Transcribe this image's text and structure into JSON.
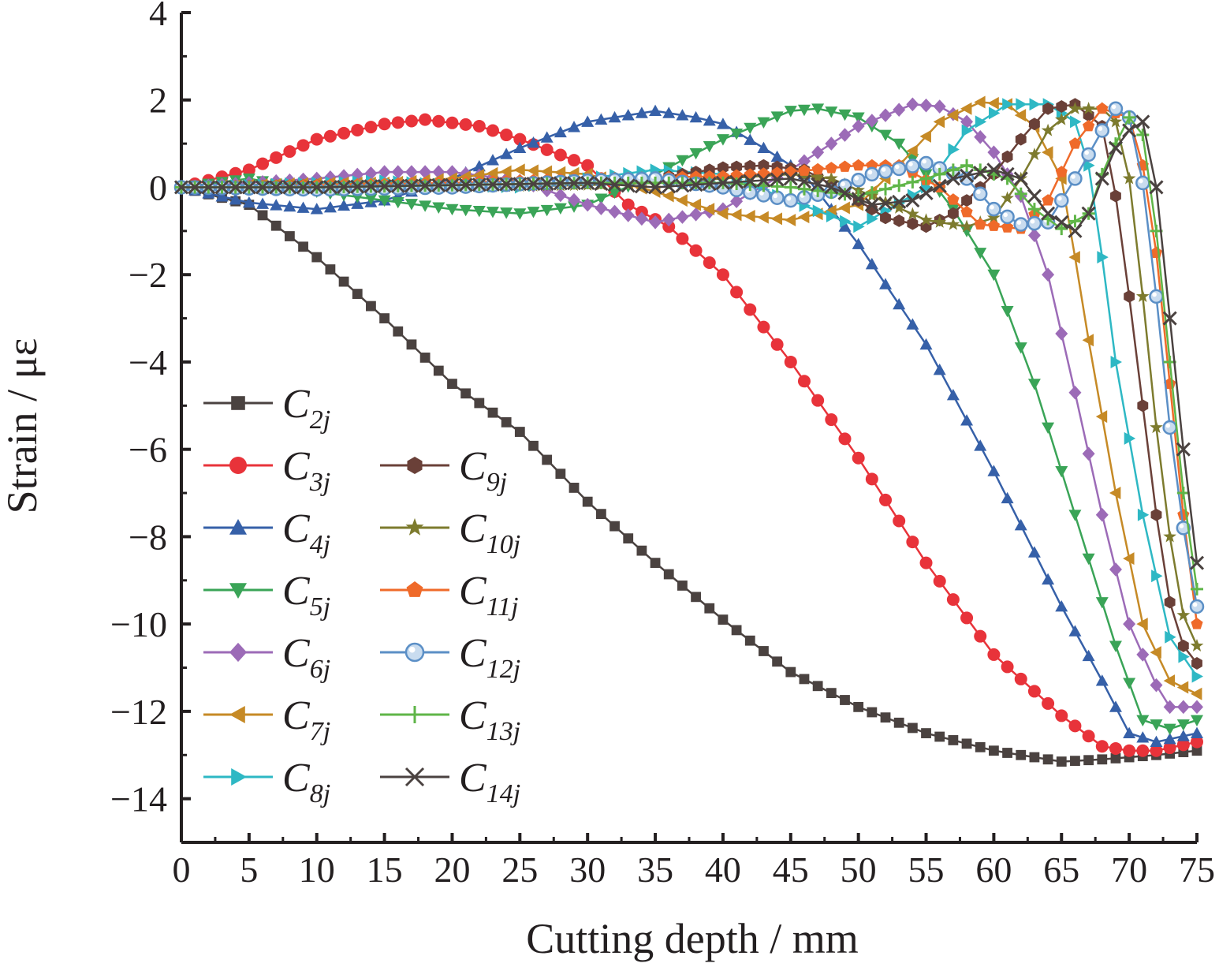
{
  "chart_data": {
    "type": "line",
    "xlabel": "Cutting depth / mm",
    "ylabel": "Strain / με",
    "xlim": [
      0,
      75
    ],
    "ylim": [
      -15,
      4
    ],
    "xticks": [
      "0",
      "5",
      "10",
      "15",
      "20",
      "25",
      "30",
      "35",
      "40",
      "45",
      "50",
      "55",
      "60",
      "65",
      "70",
      "75"
    ],
    "yticks": [
      "4",
      "2",
      "0",
      "−2",
      "−4",
      "−6",
      "−8",
      "−10",
      "−12",
      "−14"
    ],
    "grid": false,
    "legend_position": "bottom-left, two columns",
    "series": [
      {
        "name": "C2j",
        "letter": "C",
        "sub": "2j",
        "color": "#4a4240",
        "marker": "square",
        "points": [
          [
            0,
            0
          ],
          [
            5,
            -0.4
          ],
          [
            10,
            -1.6
          ],
          [
            15,
            -3.0
          ],
          [
            20,
            -4.5
          ],
          [
            25,
            -5.6
          ],
          [
            30,
            -7.2
          ],
          [
            35,
            -8.6
          ],
          [
            40,
            -9.9
          ],
          [
            45,
            -11.1
          ],
          [
            50,
            -11.9
          ],
          [
            55,
            -12.5
          ],
          [
            60,
            -12.9
          ],
          [
            65,
            -13.15
          ],
          [
            68,
            -13.1
          ],
          [
            72,
            -13.0
          ],
          [
            75,
            -12.9
          ]
        ]
      },
      {
        "name": "C3j",
        "letter": "C",
        "sub": "3j",
        "color": "#e8333a",
        "marker": "circle",
        "points": [
          [
            0,
            0
          ],
          [
            5,
            0.4
          ],
          [
            10,
            1.1
          ],
          [
            15,
            1.45
          ],
          [
            18,
            1.55
          ],
          [
            22,
            1.4
          ],
          [
            25,
            1.1
          ],
          [
            30,
            0.5
          ],
          [
            33,
            -0.4
          ],
          [
            36,
            -0.9
          ],
          [
            40,
            -2.0
          ],
          [
            45,
            -4.0
          ],
          [
            50,
            -6.2
          ],
          [
            55,
            -8.6
          ],
          [
            60,
            -10.7
          ],
          [
            65,
            -12.1
          ],
          [
            68,
            -12.8
          ],
          [
            70,
            -12.9
          ],
          [
            72,
            -12.9
          ],
          [
            75,
            -12.7
          ]
        ]
      },
      {
        "name": "C4j",
        "letter": "C",
        "sub": "4j",
        "color": "#3660a8",
        "marker": "triangle-up",
        "points": [
          [
            0,
            0
          ],
          [
            5,
            -0.35
          ],
          [
            10,
            -0.5
          ],
          [
            15,
            -0.3
          ],
          [
            20,
            0.2
          ],
          [
            25,
            0.9
          ],
          [
            30,
            1.5
          ],
          [
            35,
            1.75
          ],
          [
            38,
            1.6
          ],
          [
            40,
            1.45
          ],
          [
            43,
            0.9
          ],
          [
            46,
            0.3
          ],
          [
            50,
            -1.3
          ],
          [
            55,
            -3.6
          ],
          [
            60,
            -6.5
          ],
          [
            65,
            -9.6
          ],
          [
            68,
            -11.3
          ],
          [
            70,
            -12.5
          ],
          [
            72,
            -12.7
          ],
          [
            75,
            -12.5
          ]
        ]
      },
      {
        "name": "C5j",
        "letter": "C",
        "sub": "5j",
        "color": "#3aa457",
        "marker": "triangle-down",
        "points": [
          [
            0,
            0
          ],
          [
            5,
            0.2
          ],
          [
            10,
            -0.1
          ],
          [
            15,
            -0.3
          ],
          [
            20,
            -0.5
          ],
          [
            25,
            -0.6
          ],
          [
            30,
            -0.4
          ],
          [
            35,
            0.3
          ],
          [
            40,
            1.1
          ],
          [
            45,
            1.75
          ],
          [
            47,
            1.8
          ],
          [
            50,
            1.6
          ],
          [
            53,
            1.0
          ],
          [
            55,
            0.3
          ],
          [
            57,
            -0.5
          ],
          [
            60,
            -2.0
          ],
          [
            63,
            -4.5
          ],
          [
            66,
            -7.5
          ],
          [
            69,
            -10.5
          ],
          [
            71,
            -12.2
          ],
          [
            73,
            -12.4
          ],
          [
            75,
            -12.2
          ]
        ]
      },
      {
        "name": "C6j",
        "letter": "C",
        "sub": "6j",
        "color": "#9c6bb7",
        "marker": "diamond",
        "points": [
          [
            0,
            0
          ],
          [
            5,
            0.1
          ],
          [
            10,
            0.2
          ],
          [
            15,
            0.35
          ],
          [
            20,
            0.35
          ],
          [
            25,
            0.15
          ],
          [
            30,
            -0.4
          ],
          [
            35,
            -0.8
          ],
          [
            40,
            -0.5
          ],
          [
            45,
            0.4
          ],
          [
            50,
            1.4
          ],
          [
            54,
            1.9
          ],
          [
            56,
            1.85
          ],
          [
            58,
            1.5
          ],
          [
            60,
            0.8
          ],
          [
            62,
            -0.2
          ],
          [
            64,
            -2.0
          ],
          [
            66,
            -4.7
          ],
          [
            68,
            -7.5
          ],
          [
            70,
            -10.0
          ],
          [
            72,
            -11.4
          ],
          [
            73,
            -11.9
          ],
          [
            75,
            -11.9
          ]
        ]
      },
      {
        "name": "C7j",
        "letter": "C",
        "sub": "7j",
        "color": "#c68a26",
        "marker": "triangle-left",
        "points": [
          [
            0,
            0
          ],
          [
            5,
            0.05
          ],
          [
            10,
            0.1
          ],
          [
            15,
            0.1
          ],
          [
            20,
            0.2
          ],
          [
            25,
            0.4
          ],
          [
            30,
            0.3
          ],
          [
            35,
            -0.1
          ],
          [
            40,
            -0.6
          ],
          [
            45,
            -0.75
          ],
          [
            50,
            -0.4
          ],
          [
            53,
            0.5
          ],
          [
            56,
            1.5
          ],
          [
            59,
            1.95
          ],
          [
            61,
            1.9
          ],
          [
            63,
            1.4
          ],
          [
            65,
            0.2
          ],
          [
            66,
            -1.6
          ],
          [
            67,
            -3.5
          ],
          [
            69,
            -7.0
          ],
          [
            71,
            -10.0
          ],
          [
            73,
            -11.3
          ],
          [
            75,
            -11.6
          ]
        ]
      },
      {
        "name": "C8j",
        "letter": "C",
        "sub": "8j",
        "color": "#2eb8c4",
        "marker": "triangle-right",
        "points": [
          [
            0,
            0
          ],
          [
            5,
            0.05
          ],
          [
            10,
            0.1
          ],
          [
            15,
            0.15
          ],
          [
            20,
            0.05
          ],
          [
            25,
            0.0
          ],
          [
            30,
            0.2
          ],
          [
            35,
            0.4
          ],
          [
            40,
            0.3
          ],
          [
            45,
            -0.3
          ],
          [
            50,
            -0.9
          ],
          [
            55,
            0.0
          ],
          [
            58,
            1.3
          ],
          [
            61,
            1.9
          ],
          [
            64,
            1.9
          ],
          [
            66,
            1.5
          ],
          [
            67,
            0.5
          ],
          [
            68,
            -1.6
          ],
          [
            69,
            -4.0
          ],
          [
            71,
            -7.5
          ],
          [
            73,
            -10.3
          ],
          [
            75,
            -11.2
          ]
        ]
      },
      {
        "name": "C9j",
        "letter": "C",
        "sub": "9j",
        "color": "#6a4038",
        "marker": "hexagon",
        "points": [
          [
            0,
            0
          ],
          [
            10,
            0.05
          ],
          [
            20,
            0.0
          ],
          [
            30,
            0.1
          ],
          [
            35,
            0.2
          ],
          [
            40,
            0.45
          ],
          [
            43,
            0.5
          ],
          [
            46,
            0.4
          ],
          [
            49,
            -0.1
          ],
          [
            52,
            -0.7
          ],
          [
            55,
            -0.9
          ],
          [
            57,
            -0.6
          ],
          [
            60,
            0.3
          ],
          [
            62,
            1.1
          ],
          [
            64,
            1.8
          ],
          [
            66,
            1.9
          ],
          [
            68,
            1.4
          ],
          [
            69,
            -0.2
          ],
          [
            70,
            -2.5
          ],
          [
            71,
            -5.0
          ],
          [
            72,
            -7.5
          ],
          [
            73,
            -9.5
          ],
          [
            74,
            -10.5
          ],
          [
            75,
            -10.9
          ]
        ]
      },
      {
        "name": "C10j",
        "letter": "C",
        "sub": "10j",
        "color": "#7d7b2e",
        "marker": "star",
        "points": [
          [
            0,
            0
          ],
          [
            10,
            0.05
          ],
          [
            20,
            0.0
          ],
          [
            30,
            0.05
          ],
          [
            35,
            0.1
          ],
          [
            40,
            0.2
          ],
          [
            45,
            0.3
          ],
          [
            48,
            0.2
          ],
          [
            51,
            -0.2
          ],
          [
            55,
            -0.75
          ],
          [
            58,
            -0.9
          ],
          [
            60,
            -0.7
          ],
          [
            62,
            0.2
          ],
          [
            64,
            1.3
          ],
          [
            66,
            1.8
          ],
          [
            68,
            1.8
          ],
          [
            69,
            1.5
          ],
          [
            70,
            0.2
          ],
          [
            71,
            -2.5
          ],
          [
            72,
            -5.5
          ],
          [
            73,
            -8.0
          ],
          [
            74,
            -9.8
          ],
          [
            75,
            -10.5
          ]
        ]
      },
      {
        "name": "C11j",
        "letter": "C",
        "sub": "11j",
        "color": "#ef6a2a",
        "marker": "pentagon",
        "points": [
          [
            0,
            0
          ],
          [
            10,
            0.05
          ],
          [
            20,
            0.1
          ],
          [
            30,
            0.2
          ],
          [
            40,
            0.25
          ],
          [
            45,
            0.35
          ],
          [
            50,
            0.5
          ],
          [
            53,
            0.5
          ],
          [
            56,
            0.0
          ],
          [
            59,
            -0.85
          ],
          [
            62,
            -0.95
          ],
          [
            64,
            -0.3
          ],
          [
            66,
            1.0
          ],
          [
            68,
            1.8
          ],
          [
            70,
            1.6
          ],
          [
            71,
            0.5
          ],
          [
            72,
            -1.5
          ],
          [
            73,
            -4.5
          ],
          [
            74,
            -7.5
          ],
          [
            75,
            -10.0
          ]
        ]
      },
      {
        "name": "C12j",
        "letter": "C",
        "sub": "12j",
        "color": "#5b8fc6",
        "marker": "sphere",
        "points": [
          [
            0,
            0
          ],
          [
            10,
            -0.05
          ],
          [
            20,
            0.0
          ],
          [
            30,
            0.15
          ],
          [
            35,
            0.2
          ],
          [
            40,
            0.0
          ],
          [
            45,
            -0.3
          ],
          [
            48,
            -0.1
          ],
          [
            51,
            0.3
          ],
          [
            55,
            0.55
          ],
          [
            58,
            0.2
          ],
          [
            60,
            -0.5
          ],
          [
            62,
            -0.85
          ],
          [
            64,
            -0.8
          ],
          [
            66,
            0.2
          ],
          [
            68,
            1.3
          ],
          [
            69,
            1.8
          ],
          [
            70,
            1.6
          ],
          [
            71,
            0.1
          ],
          [
            72,
            -2.5
          ],
          [
            73,
            -5.5
          ],
          [
            74,
            -7.8
          ],
          [
            75,
            -9.6
          ]
        ]
      },
      {
        "name": "C13j",
        "letter": "C",
        "sub": "13j",
        "color": "#5fb548",
        "marker": "plus",
        "points": [
          [
            0,
            0
          ],
          [
            10,
            0.0
          ],
          [
            20,
            0.05
          ],
          [
            30,
            0.1
          ],
          [
            40,
            0.1
          ],
          [
            45,
            0.0
          ],
          [
            50,
            -0.2
          ],
          [
            55,
            0.2
          ],
          [
            58,
            0.5
          ],
          [
            61,
            0.2
          ],
          [
            63,
            -0.5
          ],
          [
            65,
            -0.95
          ],
          [
            67,
            -0.6
          ],
          [
            68,
            0.3
          ],
          [
            69,
            1.0
          ],
          [
            70,
            1.6
          ],
          [
            71,
            1.2
          ],
          [
            72,
            -1.0
          ],
          [
            73,
            -4.0
          ],
          [
            74,
            -7.0
          ],
          [
            75,
            -9.2
          ]
        ]
      },
      {
        "name": "C14j",
        "letter": "C",
        "sub": "14j",
        "color": "#4a4240",
        "marker": "cross",
        "points": [
          [
            0,
            0
          ],
          [
            10,
            0.0
          ],
          [
            20,
            0.05
          ],
          [
            30,
            0.1
          ],
          [
            35,
            0.0
          ],
          [
            40,
            0.1
          ],
          [
            45,
            0.2
          ],
          [
            48,
            0.0
          ],
          [
            51,
            -0.4
          ],
          [
            54,
            -0.3
          ],
          [
            57,
            0.2
          ],
          [
            60,
            0.4
          ],
          [
            62,
            0.2
          ],
          [
            64,
            -0.6
          ],
          [
            66,
            -1.0
          ],
          [
            67,
            -0.6
          ],
          [
            68,
            0.2
          ],
          [
            69,
            0.9
          ],
          [
            70,
            1.3
          ],
          [
            71,
            1.5
          ],
          [
            72,
            0.0
          ],
          [
            73,
            -3.0
          ],
          [
            74,
            -6.0
          ],
          [
            75,
            -8.6
          ]
        ]
      }
    ]
  }
}
